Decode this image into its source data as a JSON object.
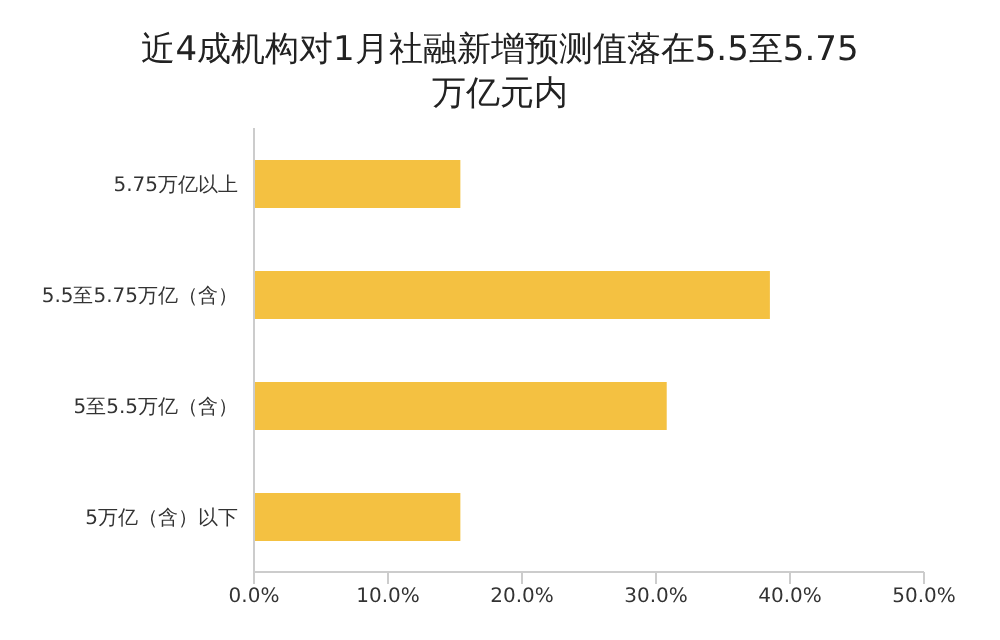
{
  "chart_data": {
    "type": "bar",
    "orientation": "horizontal",
    "title": "近4成机构对1月社融新增预测值落在5.5至5.75万亿元内",
    "categories": [
      "5.75万亿以上",
      "5.5至5.75万亿（含）",
      "5至5.5万亿（含）",
      "5万亿（含）以下"
    ],
    "values": [
      15.4,
      38.5,
      30.8,
      15.4
    ],
    "color": "#f4c141",
    "xlim": [
      0,
      50
    ],
    "xticks": [
      {
        "value": 0,
        "label": "0.0%"
      },
      {
        "value": 10,
        "label": "10.0%"
      },
      {
        "value": 20,
        "label": "20.0%"
      },
      {
        "value": 30,
        "label": "30.0%"
      },
      {
        "value": 40,
        "label": "40.0%"
      },
      {
        "value": 50,
        "label": "50.0%"
      }
    ],
    "grid": false
  }
}
